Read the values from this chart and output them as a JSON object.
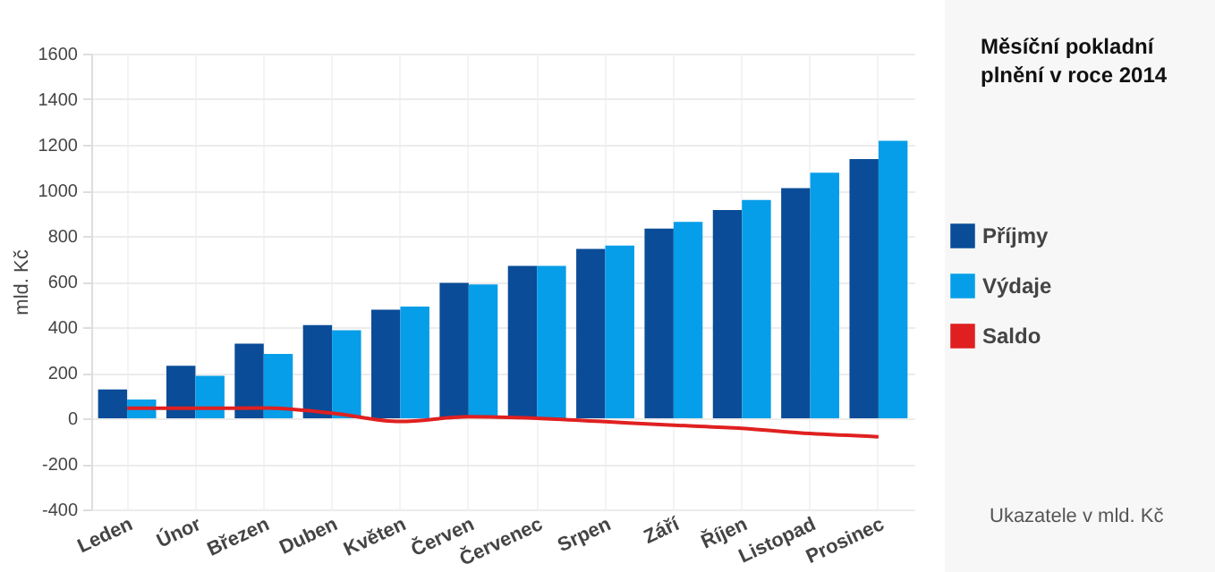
{
  "chart_data": {
    "type": "bar",
    "title": "Měsíční pokladní plnění v roce 2014",
    "ylabel": "mld. Kč",
    "annotations": [
      "Ukazatele v mld. Kč"
    ],
    "categories": [
      "Leden",
      "Únor",
      "Březen",
      "Duben",
      "Květen",
      "Červen",
      "Červenec",
      "Srpen",
      "Září",
      "Říjen",
      "Listopad",
      "Prosinec"
    ],
    "series": [
      {
        "name": "Příjmy",
        "color": "#0a4c97",
        "values": [
          126,
          230,
          327,
          409,
          476,
          594,
          669,
          743,
          832,
          914,
          1010,
          1137
        ]
      },
      {
        "name": "Výdaje",
        "color": "#069ee8",
        "values": [
          82,
          186,
          282,
          386,
          490,
          587,
          669,
          758,
          862,
          958,
          1077,
          1218
        ]
      },
      {
        "name": "Saldo",
        "type": "line",
        "color": "#e02020",
        "values": [
          44,
          44,
          45,
          23,
          -14,
          7,
          0,
          -15,
          -30,
          -44,
          -67,
          -81
        ]
      }
    ],
    "ylim": [
      -400,
      1600
    ],
    "yticks": [
      -400,
      -200,
      0,
      200,
      400,
      600,
      800,
      1000,
      1200,
      1400,
      1600
    ],
    "grid": true,
    "legend": "right"
  }
}
